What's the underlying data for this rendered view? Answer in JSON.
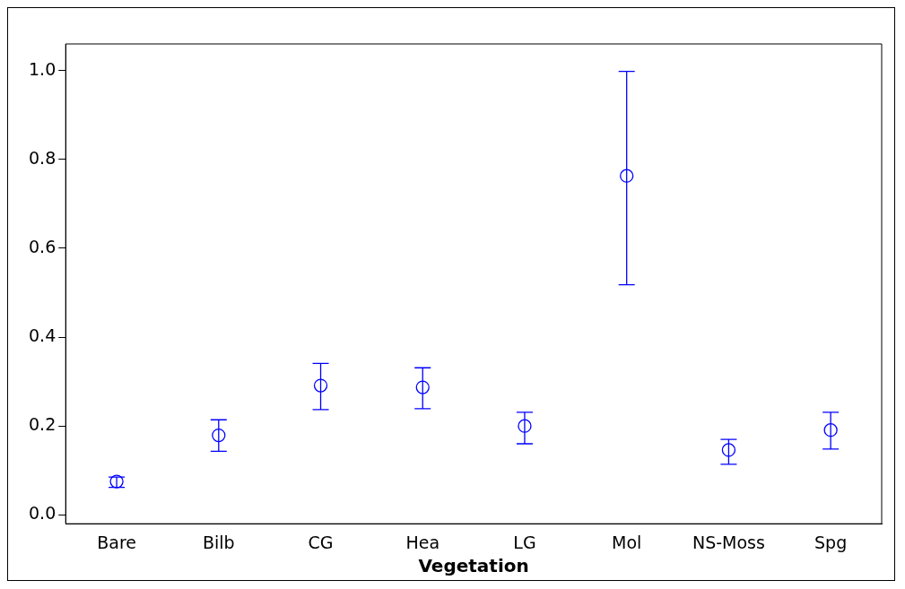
{
  "chart_data": {
    "type": "scatter",
    "xlabel": "Vegetation",
    "categories": [
      "Bare",
      "Bilb",
      "CG",
      "Hea",
      "LG",
      "Mol",
      "NS-Moss",
      "Spg"
    ],
    "values": [
      0.075,
      0.179,
      0.291,
      0.287,
      0.2,
      0.763,
      0.146,
      0.191
    ],
    "errors": [
      [
        0.062,
        0.085
      ],
      [
        0.143,
        0.214
      ],
      [
        0.237,
        0.341
      ],
      [
        0.239,
        0.331
      ],
      [
        0.16,
        0.231
      ],
      [
        0.518,
        0.998
      ],
      [
        0.114,
        0.17
      ],
      [
        0.148,
        0.231
      ]
    ],
    "color": "#0000ff",
    "marker": "circle",
    "grid": false,
    "legend": false,
    "ylim": [
      -0.02,
      1.06
    ],
    "yticks": [
      {
        "value": 0,
        "label": "0.0"
      },
      {
        "value": 0.2,
        "label": "0.2"
      },
      {
        "value": 0.4,
        "label": "0.4"
      },
      {
        "value": 0.6,
        "label": "0.6"
      },
      {
        "value": 0.8,
        "label": "0.8"
      },
      {
        "value": 1,
        "label": "1.0"
      }
    ]
  }
}
